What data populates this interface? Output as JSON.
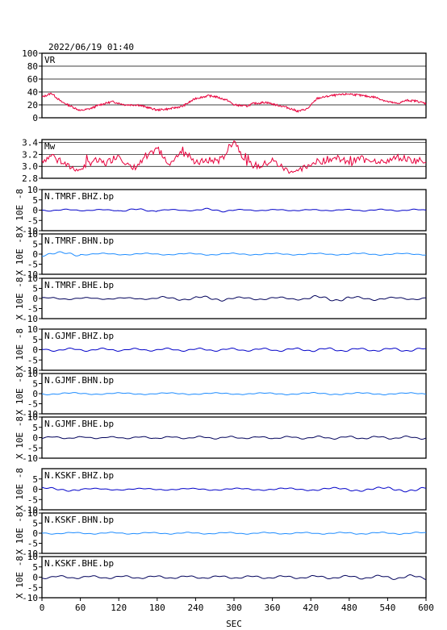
{
  "chart_data": {
    "type": "line",
    "title": "2022/06/19 01:40",
    "xlabel": "SEC",
    "xlim": [
      0,
      600
    ],
    "xticks": [
      "0",
      "60",
      "120",
      "180",
      "240",
      "300",
      "360",
      "420",
      "480",
      "540",
      "600"
    ],
    "colors": {
      "vr": "#e8003c",
      "mw": "#e8003c",
      "bhz": "#0000c8",
      "bhn": "#1e8cff",
      "bhe": "#00005a"
    },
    "panels": [
      {
        "id": "vr",
        "label": "VR",
        "color": "#e8003c",
        "ylim": [
          0,
          100
        ],
        "yticks": [
          "100",
          "80",
          "60",
          "40",
          "20",
          "0"
        ],
        "grid": true,
        "x": [
          0,
          15,
          30,
          60,
          75,
          90,
          110,
          130,
          150,
          180,
          200,
          220,
          240,
          260,
          270,
          290,
          300,
          320,
          330,
          350,
          365,
          380,
          400,
          415,
          430,
          450,
          480,
          510,
          520,
          540,
          555,
          570,
          585,
          600
        ],
        "values": [
          32,
          38,
          25,
          11,
          14,
          20,
          25,
          20,
          20,
          12,
          14,
          18,
          30,
          34,
          33,
          27,
          20,
          18,
          22,
          24,
          20,
          17,
          10,
          14,
          30,
          34,
          37,
          33,
          32,
          25,
          22,
          27,
          26,
          22
        ]
      },
      {
        "id": "mw",
        "label": "Mw",
        "color": "#e8003c",
        "ylim": [
          2.8,
          3.45
        ],
        "yticks": [
          "3.4",
          "3.2",
          "3.0",
          "2.8"
        ],
        "grid": true,
        "x": [
          0,
          20,
          40,
          60,
          80,
          100,
          120,
          140,
          160,
          180,
          200,
          220,
          240,
          260,
          280,
          300,
          320,
          340,
          360,
          380,
          400,
          420,
          440,
          460,
          480,
          500,
          520,
          540,
          560,
          580,
          600
        ],
        "values": [
          3.1,
          3.2,
          3.0,
          2.95,
          3.1,
          3.05,
          3.2,
          2.95,
          3.1,
          3.3,
          3.05,
          3.3,
          3.05,
          3.1,
          3.1,
          3.45,
          3.05,
          3.0,
          3.1,
          2.95,
          2.9,
          3.05,
          3.1,
          3.15,
          3.05,
          3.15,
          3.1,
          3.1,
          3.15,
          3.1,
          3.1
        ]
      },
      {
        "id": "tmrf-bhz",
        "label": "N.TMRF.BHZ.bp",
        "color": "#0000c8",
        "unit": "X 10E -8",
        "ylim": [
          -10,
          10
        ],
        "yticks": [
          "10",
          "5",
          "0",
          "-5",
          "-10"
        ],
        "grid": false,
        "amp": [
          0.5,
          0.4,
          0.8,
          0.4,
          0.9,
          0.4,
          0.4,
          0.4,
          0.5,
          0.5
        ],
        "freq": 0.11
      },
      {
        "id": "tmrf-bhn",
        "label": "N.TMRF.BHN.bp",
        "color": "#1e8cff",
        "unit": "X 10E -8",
        "ylim": [
          -10,
          10
        ],
        "yticks": [
          "10",
          "5",
          "0",
          "-5",
          "-10"
        ],
        "grid": false,
        "amp": [
          1.2,
          0.5,
          0.5,
          0.5,
          0.6,
          0.5,
          0.5,
          0.5,
          0.6,
          0.5
        ],
        "freq": 0.09
      },
      {
        "id": "tmrf-bhe",
        "label": "N.TMRF.BHE.bp",
        "color": "#00005a",
        "unit": "X 10E -8",
        "ylim": [
          -10,
          10
        ],
        "yticks": [
          "10",
          "5",
          "0",
          "-5",
          "-10"
        ],
        "grid": false,
        "amp": [
          0.6,
          0.5,
          0.5,
          1.0,
          1.3,
          0.8,
          0.8,
          1.5,
          1.0,
          0.7
        ],
        "freq": 0.1
      },
      {
        "id": "gjmf-bhz",
        "label": "N.GJMF.BHZ.bp",
        "color": "#0000c8",
        "unit": "X 10E -8",
        "ylim": [
          -10,
          10
        ],
        "yticks": [
          "10",
          "5",
          "0",
          "-5",
          "-10"
        ],
        "grid": false,
        "amp": [
          0.8,
          0.8,
          0.7,
          0.8,
          0.8,
          0.8,
          0.9,
          1.0,
          0.9,
          1.0
        ],
        "freq": 0.12
      },
      {
        "id": "gjmf-bhn",
        "label": "N.GJMF.BHN.bp",
        "color": "#1e8cff",
        "unit": "X 10E -8",
        "ylim": [
          -10,
          10
        ],
        "yticks": [
          "10",
          "5",
          "0",
          "-5",
          "-10"
        ],
        "grid": false,
        "amp": [
          0.6,
          0.5,
          0.5,
          0.5,
          0.5,
          0.5,
          0.6,
          0.6,
          0.6,
          0.5
        ],
        "freq": 0.08
      },
      {
        "id": "gjmf-bhe",
        "label": "N.GJMF.BHE.bp",
        "color": "#00005a",
        "unit": "X 10E -8",
        "ylim": [
          -10,
          10
        ],
        "yticks": [
          "10",
          "5",
          "0",
          "-5",
          "-10"
        ],
        "grid": false,
        "amp": [
          0.6,
          0.5,
          0.6,
          0.6,
          0.7,
          0.6,
          0.7,
          0.8,
          0.8,
          0.8
        ],
        "freq": 0.13
      },
      {
        "id": "kskf-bhz",
        "label": "N.KSKF.BHZ.bp",
        "color": "#0000c8",
        "unit": "X 10E -8",
        "ylim": [
          -10,
          10
        ],
        "yticks": [
          "5",
          "0",
          "-5",
          "-10"
        ],
        "grid": false,
        "amp": [
          1.0,
          0.5,
          0.5,
          0.5,
          0.6,
          0.6,
          0.7,
          0.9,
          1.1,
          1.3
        ],
        "freq": 0.08
      },
      {
        "id": "kskf-bhn",
        "label": "N.KSKF.BHN.bp",
        "color": "#1e8cff",
        "unit": "X 10E -8",
        "ylim": [
          -10,
          10
        ],
        "yticks": [
          "10",
          "5",
          "0",
          "-5",
          "-10"
        ],
        "grid": false,
        "amp": [
          0.5,
          0.5,
          0.5,
          0.5,
          0.5,
          0.5,
          0.5,
          0.5,
          0.6,
          0.6
        ],
        "freq": 0.1
      },
      {
        "id": "kskf-bhe",
        "label": "N.KSKF.BHE.bp",
        "color": "#00005a",
        "unit": "X 10E -8",
        "ylim": [
          -10,
          10
        ],
        "yticks": [
          "10",
          "5",
          "0",
          "-5",
          "-10"
        ],
        "grid": false,
        "amp": [
          0.8,
          0.8,
          0.8,
          0.8,
          0.8,
          0.8,
          0.8,
          0.9,
          1.0,
          1.2
        ],
        "freq": 0.12
      }
    ]
  }
}
